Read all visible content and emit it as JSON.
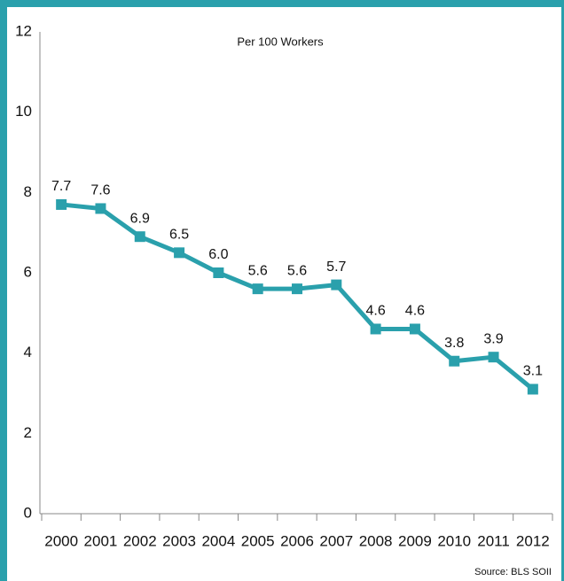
{
  "chart_data": {
    "type": "line",
    "title": "Per 100 Workers",
    "source": "Source: BLS SOII",
    "categories": [
      "2000",
      "2001",
      "2002",
      "2003",
      "2004",
      "2005",
      "2006",
      "2007",
      "2008",
      "2009",
      "2010",
      "2011",
      "2012"
    ],
    "values": [
      7.7,
      7.6,
      6.9,
      6.5,
      6,
      5.6,
      5.6,
      5.7,
      4.6,
      4.6,
      3.8,
      3.9,
      3.1
    ],
    "value_labels": [
      "7.7",
      "7.6",
      "6.9",
      "6.5",
      "6.0",
      "5.6",
      "5.6",
      "5.7",
      "4.6",
      "4.6",
      "3.8",
      "3.9",
      "3.1"
    ],
    "color": "#2aa0ac",
    "ylim": [
      0,
      12
    ],
    "yticks": [
      0,
      2,
      4,
      6,
      8,
      10,
      12
    ],
    "grid": false
  }
}
